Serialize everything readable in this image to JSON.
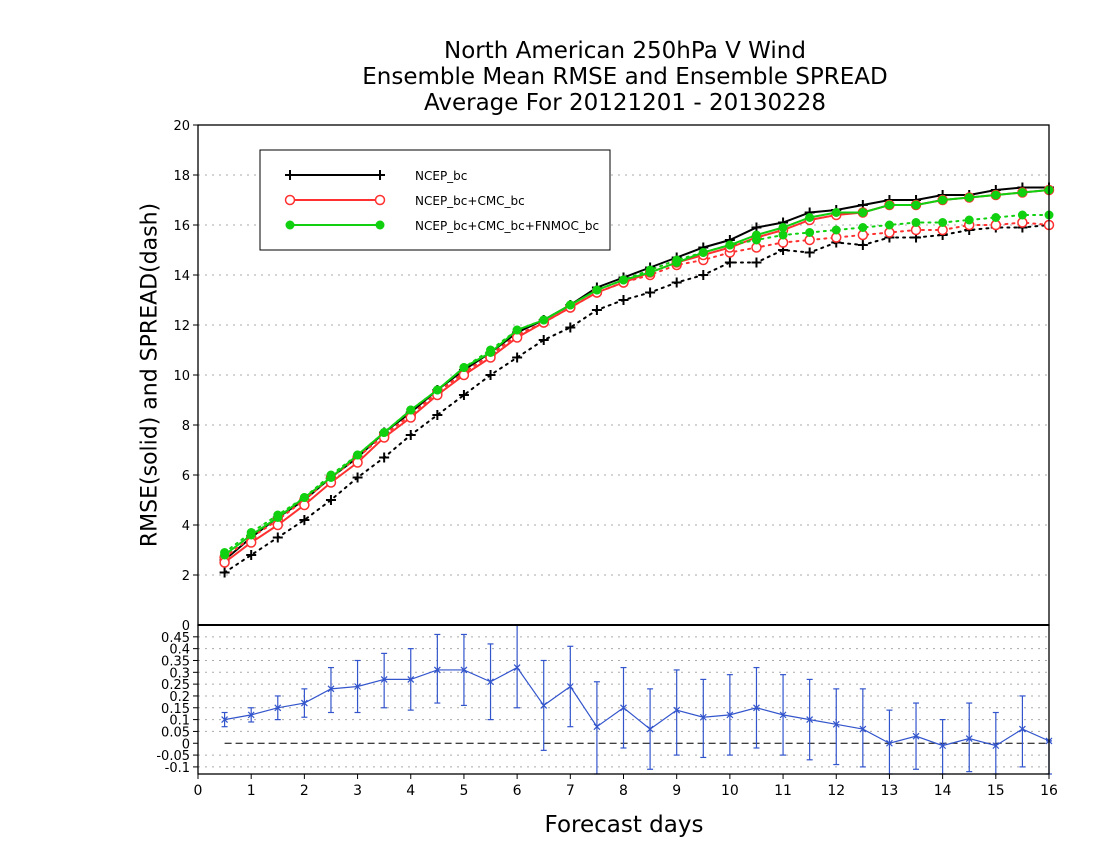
{
  "chart_data": [
    {
      "type": "line",
      "title": [
        "North American 250hPa V Wind",
        "Ensemble Mean RMSE and Ensemble SPREAD",
        "Average For 20121201 - 20130228"
      ],
      "ylabel": "RMSE(solid) and SPREAD(dash)",
      "xlim": [
        0,
        16
      ],
      "ylim": [
        0,
        20
      ],
      "yticks": [
        2,
        4,
        6,
        8,
        10,
        12,
        14,
        16,
        18,
        20
      ],
      "grid": true,
      "legend_position": "top-left",
      "x": [
        0.5,
        1,
        1.5,
        2,
        2.5,
        3,
        3.5,
        4,
        4.5,
        5,
        5.5,
        6,
        6.5,
        7,
        7.5,
        8,
        8.5,
        9,
        9.5,
        10,
        10.5,
        11,
        11.5,
        12,
        12.5,
        13,
        13.5,
        14,
        14.5,
        15,
        15.5,
        16
      ],
      "series": [
        {
          "name": "NCEP_bc",
          "color": "#000000",
          "marker": "plus",
          "rmse": [
            2.6,
            3.5,
            4.3,
            5.0,
            5.9,
            6.7,
            7.7,
            8.5,
            9.4,
            10.2,
            10.9,
            11.7,
            12.2,
            12.8,
            13.5,
            13.9,
            14.3,
            14.7,
            15.1,
            15.4,
            15.9,
            16.1,
            16.5,
            16.6,
            16.8,
            17.0,
            17.0,
            17.2,
            17.2,
            17.4,
            17.5,
            17.5
          ],
          "spread": [
            2.1,
            2.8,
            3.5,
            4.2,
            5.0,
            5.9,
            6.7,
            7.6,
            8.4,
            9.2,
            10.0,
            10.7,
            11.4,
            11.9,
            12.6,
            13.0,
            13.3,
            13.7,
            14.0,
            14.5,
            14.5,
            15.0,
            14.9,
            15.3,
            15.2,
            15.5,
            15.5,
            15.6,
            15.8,
            15.9,
            15.9,
            16.0
          ]
        },
        {
          "name": "NCEP_bc+CMC_bc",
          "color": "#ff3030",
          "marker": "open-circle",
          "rmse": [
            2.5,
            3.3,
            4.0,
            4.8,
            5.7,
            6.5,
            7.5,
            8.3,
            9.2,
            10.0,
            10.7,
            11.5,
            12.1,
            12.7,
            13.3,
            13.7,
            14.1,
            14.5,
            14.8,
            15.1,
            15.5,
            15.8,
            16.2,
            16.4,
            16.5,
            16.8,
            16.8,
            17.0,
            17.1,
            17.2,
            17.3,
            17.4
          ],
          "spread": [
            2.7,
            3.5,
            4.2,
            5.0,
            5.9,
            6.7,
            7.6,
            8.4,
            9.3,
            10.1,
            10.8,
            11.6,
            12.1,
            12.7,
            13.3,
            13.7,
            14.0,
            14.4,
            14.6,
            14.9,
            15.1,
            15.3,
            15.4,
            15.5,
            15.6,
            15.7,
            15.8,
            15.8,
            16.0,
            16.0,
            16.1,
            16.0
          ]
        },
        {
          "name": "NCEP_bc+CMC_bc+FNMOC_bc",
          "color": "#10d010",
          "marker": "filled-circle",
          "rmse": [
            2.8,
            3.6,
            4.3,
            5.1,
            5.9,
            6.8,
            7.7,
            8.6,
            9.4,
            10.3,
            10.9,
            11.8,
            12.2,
            12.8,
            13.4,
            13.8,
            14.1,
            14.5,
            14.9,
            15.2,
            15.6,
            15.9,
            16.3,
            16.5,
            16.5,
            16.8,
            16.8,
            17.0,
            17.1,
            17.2,
            17.3,
            17.4
          ],
          "spread": [
            2.9,
            3.7,
            4.4,
            5.1,
            6.0,
            6.8,
            7.7,
            8.6,
            9.4,
            10.3,
            11.0,
            11.8,
            12.2,
            12.8,
            13.4,
            13.8,
            14.2,
            14.6,
            14.9,
            15.2,
            15.4,
            15.6,
            15.7,
            15.8,
            15.9,
            16.0,
            16.1,
            16.1,
            16.2,
            16.3,
            16.4,
            16.4
          ]
        }
      ]
    },
    {
      "type": "line",
      "xlabel": "Forecast days",
      "xlim": [
        0,
        16
      ],
      "ylim": [
        -0.13,
        0.5
      ],
      "xticks": [
        0,
        1,
        2,
        3,
        4,
        5,
        6,
        7,
        8,
        9,
        10,
        11,
        12,
        13,
        14,
        15,
        16
      ],
      "yticks": [
        0.45,
        0.4,
        0.35,
        0.3,
        0.25,
        0.2,
        0.15,
        0.1,
        0.05,
        0,
        -0.05,
        -0.1
      ],
      "ytick_labels": [
        "0.45",
        "0.4",
        "0.35",
        "0.3",
        "0.25",
        "0.2",
        "0.15",
        "0.1",
        "0.05",
        "0",
        "-0.05",
        "-0.1"
      ],
      "top_label": "0",
      "zero_line": true,
      "series": [
        {
          "color": "#3355cc",
          "marker": "x",
          "x": [
            0.5,
            1,
            1.5,
            2,
            2.5,
            3,
            3.5,
            4,
            4.5,
            5,
            5.5,
            6,
            6.5,
            7,
            7.5,
            8,
            8.5,
            9,
            9.5,
            10,
            10.5,
            11,
            11.5,
            12,
            12.5,
            13,
            13.5,
            14,
            14.5,
            15,
            15.5,
            16
          ],
          "values": [
            0.1,
            0.12,
            0.15,
            0.17,
            0.23,
            0.24,
            0.27,
            0.27,
            0.31,
            0.31,
            0.26,
            0.32,
            0.16,
            0.24,
            0.07,
            0.15,
            0.06,
            0.14,
            0.11,
            0.12,
            0.15,
            0.12,
            0.1,
            0.08,
            0.06,
            0.0,
            0.03,
            -0.01,
            0.02,
            -0.01,
            0.06,
            0.01
          ],
          "err_low": [
            0.07,
            0.09,
            0.1,
            0.11,
            0.13,
            0.13,
            0.15,
            0.14,
            0.17,
            0.16,
            0.1,
            0.15,
            -0.03,
            0.07,
            -0.13,
            -0.02,
            -0.11,
            -0.05,
            -0.06,
            -0.05,
            -0.02,
            -0.05,
            -0.07,
            -0.09,
            -0.1,
            -0.13,
            -0.11,
            -0.13,
            -0.12,
            -0.13,
            -0.1,
            -0.13
          ],
          "err_high": [
            0.13,
            0.15,
            0.2,
            0.23,
            0.32,
            0.35,
            0.38,
            0.4,
            0.46,
            0.46,
            0.42,
            0.5,
            0.35,
            0.41,
            0.26,
            0.32,
            0.23,
            0.31,
            0.27,
            0.29,
            0.32,
            0.29,
            0.27,
            0.23,
            0.23,
            0.14,
            0.17,
            0.1,
            0.17,
            0.13,
            0.2,
            0.01
          ]
        }
      ]
    }
  ]
}
